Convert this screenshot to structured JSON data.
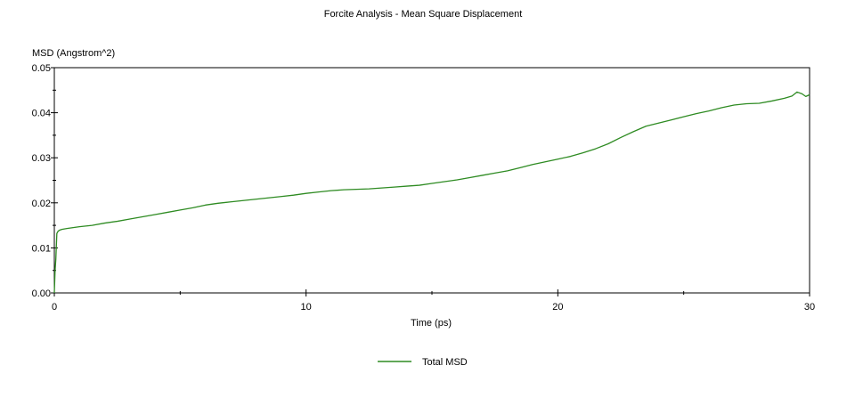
{
  "chart_data": {
    "type": "line",
    "title": "Forcite Analysis - Mean Square Displacement",
    "xlabel": "Time (ps)",
    "ylabel": "MSD (Angstrom^2)",
    "xlim": [
      0,
      30
    ],
    "ylim": [
      0,
      0.05
    ],
    "x_ticks": [
      "0",
      "10",
      "20",
      "30"
    ],
    "y_ticks": [
      "0.00",
      "0.01",
      "0.02",
      "0.03",
      "0.04",
      "0.05"
    ],
    "grid": false,
    "legend": "bottom-center",
    "series": [
      {
        "name": "Total MSD",
        "color": "#2e8b22",
        "x": [
          0,
          0.03,
          0.06,
          0.1,
          0.15,
          0.2,
          0.3,
          0.5,
          1,
          1.5,
          2,
          2.5,
          3,
          3.5,
          4,
          4.5,
          5,
          5.5,
          6,
          6.5,
          7,
          7.5,
          8,
          8.5,
          9,
          9.5,
          10,
          10.5,
          11,
          11.5,
          12,
          12.5,
          13,
          13.5,
          14,
          14.5,
          15,
          15.5,
          16,
          16.5,
          17,
          17.5,
          18,
          18.5,
          19,
          19.5,
          20,
          20.5,
          21,
          21.5,
          22,
          22.5,
          23,
          23.5,
          24,
          24.5,
          25,
          25.5,
          26,
          26.5,
          27,
          27.5,
          28,
          28.5,
          29,
          29.3,
          29.5,
          29.7,
          29.85,
          30
        ],
        "y": [
          0.0,
          0.005,
          0.0075,
          0.0132,
          0.0137,
          0.0139,
          0.0141,
          0.0143,
          0.0147,
          0.015,
          0.0155,
          0.0159,
          0.0164,
          0.0169,
          0.0174,
          0.0179,
          0.0184,
          0.0189,
          0.0195,
          0.0199,
          0.0202,
          0.0205,
          0.0208,
          0.0211,
          0.0214,
          0.0217,
          0.0221,
          0.0224,
          0.0227,
          0.0229,
          0.023,
          0.0231,
          0.0233,
          0.0235,
          0.0237,
          0.0239,
          0.0243,
          0.0247,
          0.0251,
          0.0256,
          0.0261,
          0.0266,
          0.0271,
          0.0278,
          0.0285,
          0.0291,
          0.0297,
          0.0303,
          0.0311,
          0.032,
          0.0331,
          0.0345,
          0.0358,
          0.037,
          0.0377,
          0.0384,
          0.0391,
          0.0398,
          0.0404,
          0.0411,
          0.0417,
          0.042,
          0.0421,
          0.0426,
          0.0432,
          0.0437,
          0.0446,
          0.0442,
          0.0436,
          0.044
        ]
      }
    ]
  }
}
